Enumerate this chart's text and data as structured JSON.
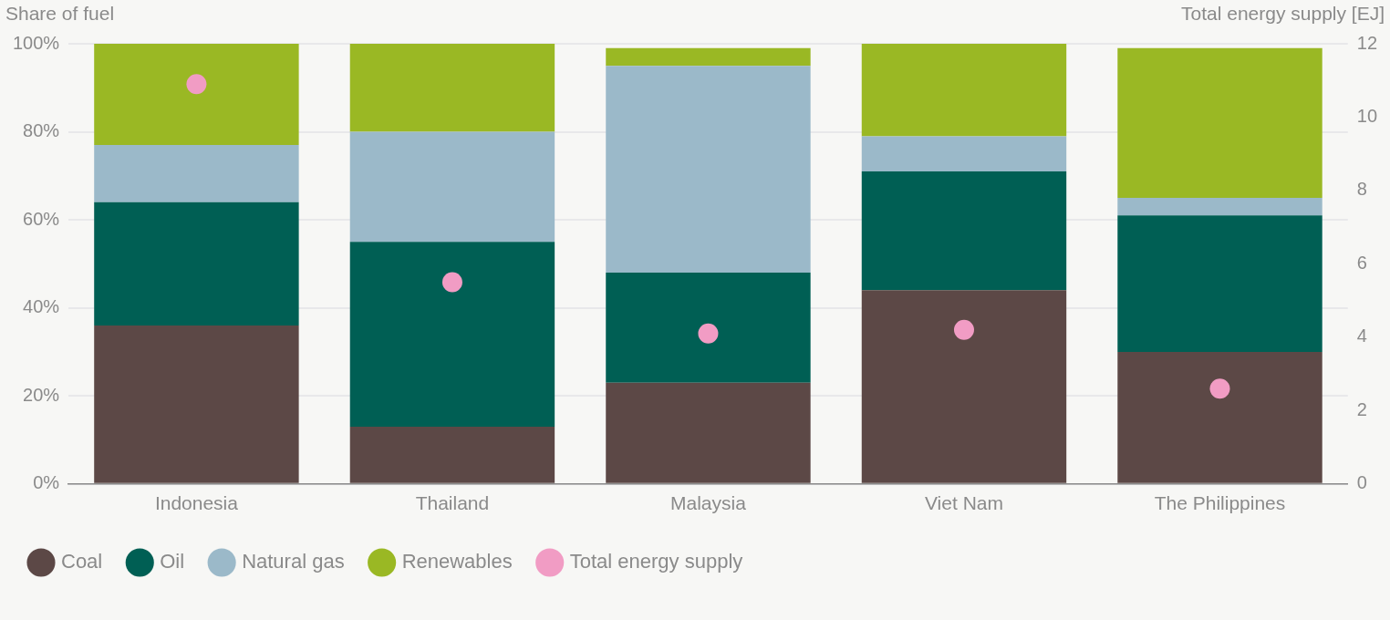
{
  "chart_data": {
    "type": "bar",
    "stacked": true,
    "ylabel": "Share of fuel",
    "y2label": "Total energy supply [EJ]",
    "categories": [
      "Indonesia",
      "Thailand",
      "Malaysia",
      "Viet Nam",
      "The Philippines"
    ],
    "series": [
      {
        "name": "Coal",
        "color": "#5c4846",
        "values": [
          36,
          13,
          23,
          44,
          30
        ]
      },
      {
        "name": "Oil",
        "color": "#005f54",
        "values": [
          28,
          42,
          25,
          27,
          31
        ]
      },
      {
        "name": "Natural gas",
        "color": "#9bb9c9",
        "values": [
          13,
          25,
          47,
          8,
          4
        ]
      },
      {
        "name": "Renewables",
        "color": "#9ab824",
        "values": [
          23,
          20,
          4,
          21,
          34
        ]
      },
      {
        "name": "Total energy supply",
        "color": "#f19cc4",
        "type": "scatter",
        "axis": "y2",
        "x": [
          "Indonesia",
          "Thailand",
          "Malaysia",
          "Viet Nam",
          "The Philippines"
        ],
        "values": [
          10.9,
          5.5,
          4.1,
          4.2,
          2.6
        ]
      }
    ],
    "ylim": [
      0,
      100
    ],
    "yticks": [
      {
        "value": 0,
        "label": "0%"
      },
      {
        "value": 20,
        "label": "20%"
      },
      {
        "value": 40,
        "label": "40%"
      },
      {
        "value": 60,
        "label": "60%"
      },
      {
        "value": 80,
        "label": "80%"
      },
      {
        "value": 100,
        "label": "100%"
      }
    ],
    "y2lim": [
      0,
      12
    ],
    "y2ticks": [
      0,
      2,
      4,
      6,
      8,
      10,
      12
    ],
    "grid": "y",
    "legend": "bottom left",
    "marker": "circle"
  }
}
